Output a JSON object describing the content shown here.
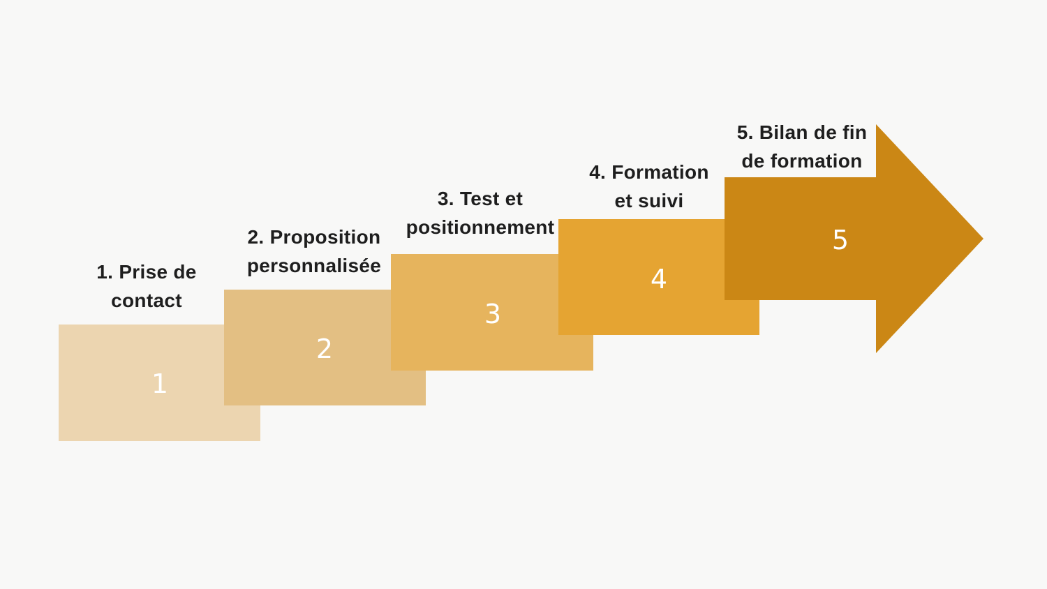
{
  "steps": [
    {
      "number": "1",
      "label_line1": "1. Prise de",
      "label_line2": "contact",
      "color": "#ecd5b0",
      "fold_color": "#cba05c"
    },
    {
      "number": "2",
      "label_line1": "2. Proposition",
      "label_line2": "personnalisée",
      "color": "#e3bf83",
      "fold_color": "#c99a4c"
    },
    {
      "number": "3",
      "label_line1": "3. Test et",
      "label_line2": "positionnement",
      "color": "#e6b45d",
      "fold_color": "#c79237"
    },
    {
      "number": "4",
      "label_line1": "4. Formation",
      "label_line2": "et suivi",
      "color": "#e5a432",
      "fold_color": "#c98a26"
    },
    {
      "number": "5",
      "label_line1": "5. Bilan de fin",
      "label_line2": "de formation",
      "color": "#cb8715",
      "fold_color": "#a66c1a"
    }
  ]
}
